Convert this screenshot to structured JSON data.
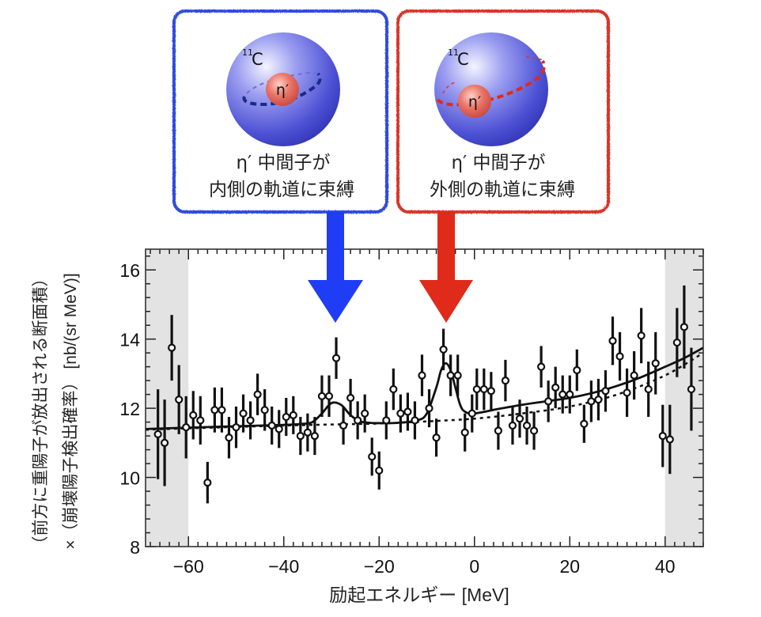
{
  "panels": [
    {
      "id": "inner",
      "nucleus_label": "11C",
      "nucleus_mass": "11",
      "nucleus_symbol": "C",
      "meson_label": "η′",
      "line1": "η′ 中間子が",
      "line2": "内側の軌道に束縛",
      "color": "#2d4be0",
      "orbit": "inner"
    },
    {
      "id": "outer",
      "nucleus_label": "11C",
      "nucleus_mass": "11",
      "nucleus_symbol": "C",
      "meson_label": "η′",
      "line1": "η′ 中間子が",
      "line2": "外側の軌道に束縛",
      "color": "#d9342b",
      "orbit": "outer"
    }
  ],
  "arrows": [
    {
      "target_energy": -29,
      "color": "#1f3df5"
    },
    {
      "target_energy": -6,
      "color": "#e02a1a"
    }
  ],
  "chart_data": {
    "type": "scatter",
    "title": "",
    "xlabel": "励起エネルギー [MeV]",
    "ylabel_line1": "（前方に重陽子が放出される断面積）",
    "ylabel_line2": "×（崩壊陽子検出確率） [nb/(sr MeV)]",
    "xlim": [
      -69,
      48
    ],
    "ylim": [
      8,
      16.6
    ],
    "xticks": [
      -60,
      -40,
      -20,
      0,
      20,
      40
    ],
    "xtick_labels": [
      "−60",
      "−40",
      "−20",
      "0",
      "20",
      "40"
    ],
    "yticks": [
      8,
      10,
      12,
      14,
      16
    ],
    "ytick_labels": [
      "8",
      "10",
      "12",
      "14",
      "16"
    ],
    "x_minor_step": 2,
    "y_minor_step": 0.4,
    "shaded_regions": [
      [
        -69,
        -60
      ],
      [
        40,
        48
      ]
    ],
    "grid": false,
    "series": [
      {
        "name": "data",
        "style": "open-circle-errorbar",
        "x": [
          -66.4,
          -65,
          -63.5,
          -62,
          -60.5,
          -59,
          -57.5,
          -56,
          -54.5,
          -53,
          -51.5,
          -50,
          -48.5,
          -47,
          -45.5,
          -44,
          -42.5,
          -41,
          -39.5,
          -38,
          -36.5,
          -35,
          -33.5,
          -32,
          -30.5,
          -29,
          -27.5,
          -26,
          -24.5,
          -23,
          -21.5,
          -20,
          -18.5,
          -17,
          -15.5,
          -14,
          -12.5,
          -11,
          -9.5,
          -8,
          -6.5,
          -5,
          -3.5,
          -2,
          -0.5,
          0.5,
          2,
          3.5,
          5,
          6.5,
          8,
          9.5,
          11,
          12.5,
          14,
          15.5,
          17,
          18.5,
          20,
          21.5,
          23,
          24.5,
          26,
          27.5,
          29,
          30.5,
          32,
          33.5,
          35,
          36.5,
          38,
          39.5,
          41,
          42.5,
          44,
          45.5
        ],
        "y": [
          11.25,
          11.0,
          13.75,
          12.25,
          11.45,
          11.8,
          11.65,
          9.85,
          11.95,
          11.95,
          11.15,
          11.45,
          11.85,
          11.65,
          12.4,
          11.95,
          11.5,
          11.4,
          11.75,
          11.8,
          11.2,
          11.3,
          11.2,
          12.35,
          12.35,
          13.45,
          11.5,
          12.3,
          11.65,
          11.85,
          10.6,
          10.2,
          11.65,
          12.55,
          11.85,
          11.9,
          11.65,
          12.95,
          12.0,
          11.15,
          13.7,
          12.95,
          12.95,
          11.3,
          11.85,
          12.55,
          12.55,
          12.5,
          11.35,
          12.8,
          11.5,
          11.7,
          11.5,
          11.35,
          13.2,
          12.2,
          12.6,
          12.4,
          12.4,
          13.1,
          11.55,
          12.2,
          12.25,
          12.5,
          13.95,
          13.5,
          12.45,
          12.95,
          14.1,
          12.55,
          13.3,
          11.2,
          11.1,
          13.9,
          14.35,
          12.55
        ],
        "yerr": [
          1.3,
          1.25,
          0.95,
          1.0,
          0.9,
          0.7,
          0.7,
          0.6,
          0.65,
          0.65,
          0.6,
          0.6,
          0.55,
          0.55,
          0.6,
          0.6,
          0.55,
          0.55,
          0.55,
          0.55,
          0.55,
          0.55,
          0.55,
          0.6,
          0.6,
          0.6,
          0.55,
          0.55,
          0.55,
          0.55,
          0.55,
          0.55,
          0.55,
          0.6,
          0.55,
          0.55,
          0.55,
          0.6,
          0.55,
          0.55,
          0.6,
          0.6,
          0.6,
          0.55,
          0.55,
          0.6,
          0.6,
          0.55,
          0.55,
          0.6,
          0.55,
          0.55,
          0.55,
          0.55,
          0.6,
          0.6,
          0.6,
          0.55,
          0.55,
          0.6,
          0.55,
          0.6,
          0.6,
          0.6,
          0.7,
          0.7,
          0.7,
          0.7,
          0.8,
          0.8,
          0.9,
          0.9,
          1.0,
          1.0,
          1.2,
          1.2
        ]
      },
      {
        "name": "fit",
        "style": "solid",
        "x": [
          -69,
          -60,
          -50,
          -40,
          -36,
          -34,
          -32,
          -30,
          -28,
          -26,
          -24,
          -22,
          -20,
          -16,
          -12,
          -10,
          -8,
          -7,
          -6,
          -5,
          -4,
          -3,
          -2,
          0,
          5,
          10,
          15,
          20,
          25,
          30,
          35,
          40,
          44,
          48
        ],
        "y": [
          11.4,
          11.44,
          11.48,
          11.52,
          11.55,
          11.6,
          11.85,
          12.15,
          12.1,
          11.8,
          11.62,
          11.58,
          11.57,
          11.58,
          11.65,
          11.85,
          12.6,
          13.1,
          13.3,
          13.1,
          12.6,
          12.1,
          11.9,
          11.85,
          11.98,
          12.1,
          12.2,
          12.3,
          12.45,
          12.65,
          12.9,
          13.2,
          13.45,
          13.75
        ]
      },
      {
        "name": "background",
        "style": "dotted",
        "x": [
          -69,
          -60,
          -50,
          -40,
          -30,
          -20,
          -10,
          0,
          10,
          20,
          30,
          40,
          48
        ],
        "y": [
          11.38,
          11.42,
          11.46,
          11.5,
          11.53,
          11.56,
          11.62,
          11.7,
          11.85,
          12.05,
          12.4,
          12.95,
          13.6
        ]
      }
    ]
  }
}
